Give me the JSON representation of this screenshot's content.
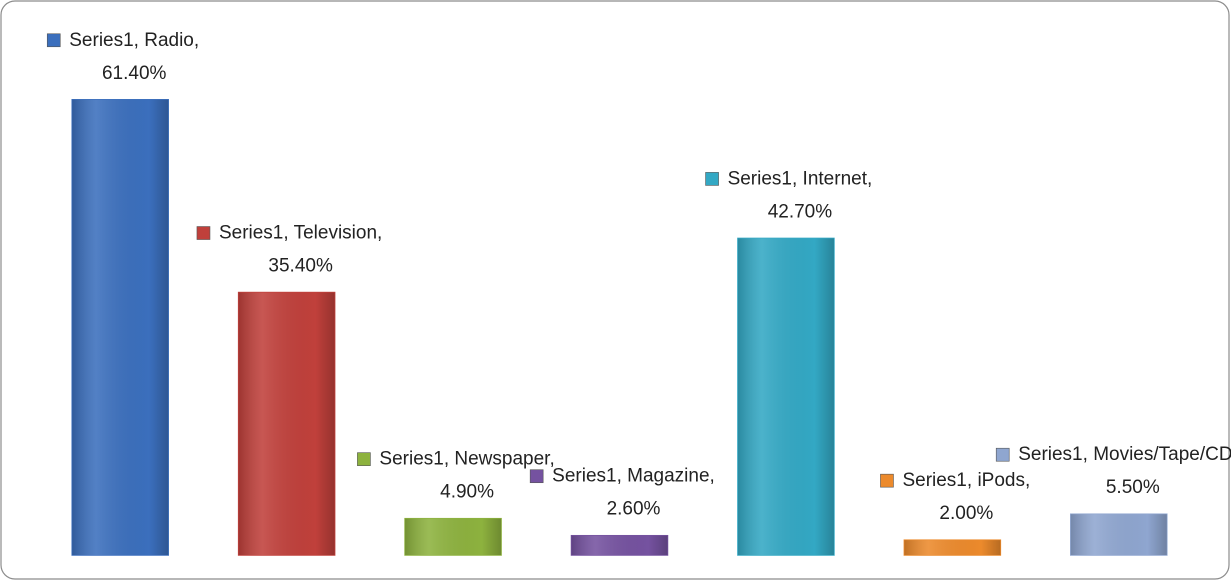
{
  "chart_data": {
    "type": "bar",
    "series_name": "Series1",
    "categories": [
      "Radio",
      "Television",
      "Newspaper",
      "Magazine",
      "Internet",
      "iPods",
      "Movies/Tape/CDs"
    ],
    "values": [
      61.4,
      35.4,
      4.9,
      2.6,
      42.7,
      2.0,
      5.5
    ],
    "value_labels": [
      "61.40%",
      "35.40%",
      "4.90%",
      "2.60%",
      "42.70%",
      "2.00%",
      "5.50%"
    ],
    "colors": [
      "#3b6fbd",
      "#c0403b",
      "#8db23e",
      "#7552a0",
      "#33a8c4",
      "#ec8a2c",
      "#8fa6d0"
    ],
    "ylim": [
      0,
      70
    ]
  }
}
